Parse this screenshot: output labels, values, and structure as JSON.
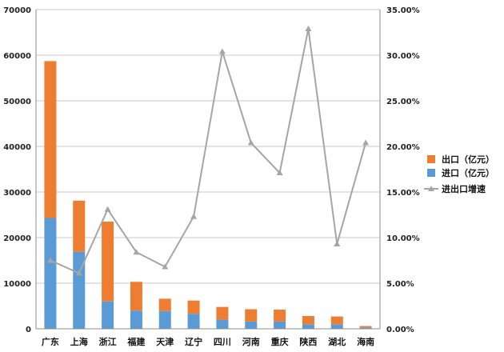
{
  "chart_data": {
    "type": "bar",
    "stacked": true,
    "categories": [
      "广东",
      "上海",
      "浙江",
      "福建",
      "天津",
      "辽宁",
      "四川",
      "河南",
      "重庆",
      "陕西",
      "湖北",
      "海南"
    ],
    "series": [
      {
        "name": "进口（亿元）",
        "type": "bar",
        "axis": "left",
        "color": "#5b9bd5",
        "values": [
          24300,
          16900,
          6000,
          4000,
          3900,
          3300,
          2000,
          1600,
          1600,
          1000,
          1000,
          300
        ]
      },
      {
        "name": "出口（亿元）",
        "type": "bar",
        "axis": "left",
        "color": "#ed7d31",
        "values": [
          34400,
          11200,
          17500,
          6300,
          2700,
          2900,
          2800,
          2700,
          2600,
          1800,
          1700,
          300
        ]
      },
      {
        "name": "进出口增速",
        "type": "line",
        "axis": "right",
        "color": "#a5a5a5",
        "values": [
          7.5,
          6.1,
          13.1,
          8.4,
          6.8,
          12.3,
          30.4,
          20.4,
          17.1,
          32.9,
          9.3,
          20.4
        ]
      }
    ],
    "y_left": {
      "min": 0,
      "max": 70000,
      "ticks": [
        "0",
        "10000",
        "20000",
        "30000",
        "40000",
        "50000",
        "60000",
        "70000"
      ]
    },
    "y_right": {
      "min": 0,
      "max": 35,
      "ticks": [
        "0.00%",
        "5.00%",
        "10.00%",
        "15.00%",
        "20.00%",
        "25.00%",
        "30.00%",
        "35.00%"
      ]
    },
    "grid": true,
    "legend": {
      "placement": "right",
      "items": [
        "出口（亿元）",
        "进口（亿元）",
        "进出口增速"
      ]
    },
    "title": "",
    "xlabel": "",
    "ylabel": ""
  }
}
